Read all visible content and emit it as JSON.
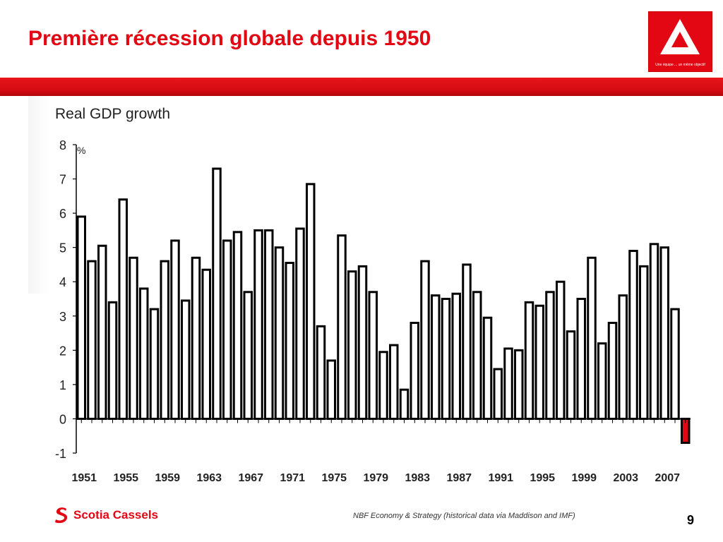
{
  "slide": {
    "title": "Première récession globale depuis 1950",
    "page_number": "9",
    "source": "NBF Economy & Strategy (historical data via Maddison and IMF)",
    "footer_logo_text": "Scotia Cassels",
    "logo_tagline": "Une équipe ... un même objectif",
    "colors": {
      "accent": "#e30613",
      "bar_outline": "#000000",
      "bar_fill": "#ffffff",
      "highlight_bar": "#e30613"
    }
  },
  "chart_data": {
    "type": "bar",
    "title": "Real GDP growth",
    "ylabel": "%",
    "xlabel": "",
    "ylim": [
      -1,
      8
    ],
    "yticks": [
      8,
      7,
      6,
      5,
      4,
      3,
      2,
      1,
      0,
      -1
    ],
    "grid": false,
    "x_tick_labels": [
      "1951",
      "1955",
      "1959",
      "1963",
      "1967",
      "1971",
      "1975",
      "1979",
      "1983",
      "1987",
      "1991",
      "1995",
      "1999",
      "2003",
      "2007"
    ],
    "x": [
      1951,
      1952,
      1953,
      1954,
      1955,
      1956,
      1957,
      1958,
      1959,
      1960,
      1961,
      1962,
      1963,
      1964,
      1965,
      1966,
      1967,
      1968,
      1969,
      1970,
      1971,
      1972,
      1973,
      1974,
      1975,
      1976,
      1977,
      1978,
      1979,
      1980,
      1981,
      1982,
      1983,
      1984,
      1985,
      1986,
      1987,
      1988,
      1989,
      1990,
      1991,
      1992,
      1993,
      1994,
      1995,
      1996,
      1997,
      1998,
      1999,
      2000,
      2001,
      2002,
      2003,
      2004,
      2005,
      2006,
      2007,
      2008,
      2009
    ],
    "values": [
      5.9,
      4.6,
      5.05,
      3.4,
      6.4,
      4.7,
      3.8,
      3.2,
      4.6,
      5.2,
      3.45,
      4.7,
      4.35,
      7.3,
      5.2,
      5.45,
      3.7,
      5.5,
      5.5,
      5.0,
      4.55,
      5.55,
      6.85,
      2.7,
      1.7,
      5.35,
      4.3,
      4.45,
      3.7,
      1.95,
      2.15,
      0.85,
      2.8,
      4.6,
      3.6,
      3.5,
      3.65,
      4.5,
      3.7,
      2.95,
      1.45,
      2.05,
      2.0,
      3.4,
      3.3,
      3.7,
      4.0,
      2.55,
      3.5,
      4.7,
      2.2,
      2.8,
      3.6,
      4.9,
      4.45,
      5.1,
      5.0,
      3.2,
      -0.7
    ],
    "highlight_index": 58
  }
}
